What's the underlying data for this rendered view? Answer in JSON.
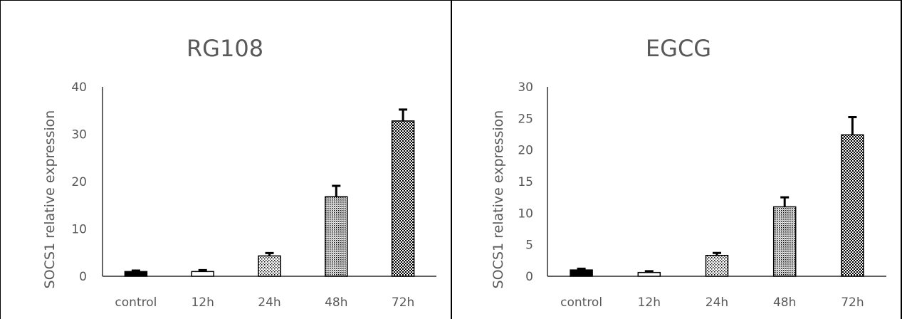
{
  "chart_data": [
    {
      "type": "bar",
      "title": "RG108",
      "ylabel": "SOCS1 relative expression",
      "xlabel": "",
      "categories": [
        "control",
        "12h",
        "24h",
        "48h",
        "72h"
      ],
      "values": [
        1.0,
        1.0,
        4.3,
        16.8,
        32.8
      ],
      "errors": [
        0.2,
        0.3,
        0.6,
        2.3,
        2.4
      ],
      "ylim": [
        0,
        40
      ],
      "yticks": [
        "0",
        "10",
        "20",
        "30",
        "40"
      ],
      "patterns": [
        "solid",
        "blank",
        "sparse-dots",
        "dense-dots",
        "checker"
      ]
    },
    {
      "type": "bar",
      "title": "EGCG",
      "ylabel": "SOCS1 relative expression",
      "xlabel": "",
      "categories": [
        "control",
        "12h",
        "24h",
        "48h",
        "72h"
      ],
      "values": [
        1.0,
        0.6,
        3.3,
        11.0,
        22.4
      ],
      "errors": [
        0.2,
        0.2,
        0.4,
        1.5,
        2.8
      ],
      "ylim": [
        0,
        30
      ],
      "yticks": [
        "0",
        "5",
        "10",
        "15",
        "20",
        "25",
        "30"
      ],
      "patterns": [
        "solid",
        "blank",
        "sparse-dots",
        "dense-dots",
        "checker"
      ]
    }
  ]
}
